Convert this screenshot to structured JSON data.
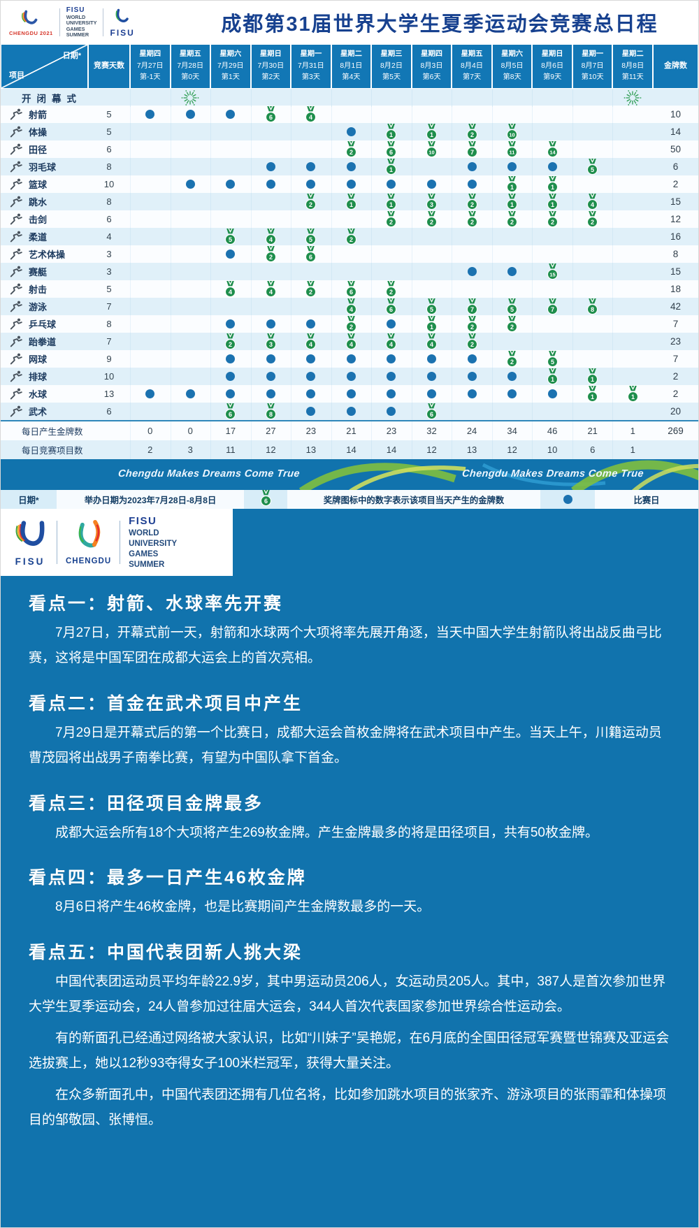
{
  "header": {
    "title": "成都第31届世界大学生夏季运动会竞赛总日程",
    "logo_chengdu_caption": "CHENGDU 2021",
    "logo_fisu_caption": "FISU",
    "fisu_lines": [
      "FISU",
      "WORLD",
      "UNIVERSITY",
      "GAMES",
      "SUMMER"
    ]
  },
  "table": {
    "corner": {
      "top": "日期*",
      "bottom": "项目"
    },
    "days_header": "竞赛天数",
    "gold_header": "金牌数",
    "columns": [
      {
        "weekday": "星期四",
        "date": "7月27日",
        "day": "第-1天"
      },
      {
        "weekday": "星期五",
        "date": "7月28日",
        "day": "第0天"
      },
      {
        "weekday": "星期六",
        "date": "7月29日",
        "day": "第1天"
      },
      {
        "weekday": "星期日",
        "date": "7月30日",
        "day": "第2天"
      },
      {
        "weekday": "星期一",
        "date": "7月31日",
        "day": "第3天"
      },
      {
        "weekday": "星期二",
        "date": "8月1日",
        "day": "第4天"
      },
      {
        "weekday": "星期三",
        "date": "8月2日",
        "day": "第5天"
      },
      {
        "weekday": "星期四",
        "date": "8月3日",
        "day": "第6天"
      },
      {
        "weekday": "星期五",
        "date": "8月4日",
        "day": "第7天"
      },
      {
        "weekday": "星期六",
        "date": "8月5日",
        "day": "第8天"
      },
      {
        "weekday": "星期日",
        "date": "8月6日",
        "day": "第9天"
      },
      {
        "weekday": "星期一",
        "date": "8月7日",
        "day": "第10天"
      },
      {
        "weekday": "星期二",
        "date": "8月8日",
        "day": "第11天"
      }
    ],
    "ceremony": {
      "name": "开闭幕式",
      "fireworks_cols": [
        1,
        12
      ]
    },
    "sports": [
      {
        "name": "射箭",
        "icon": "archery-icon",
        "days": 5,
        "gold": 10,
        "cells": [
          "d",
          "d",
          "d",
          6,
          4,
          null,
          null,
          null,
          null,
          null,
          null,
          null,
          null
        ]
      },
      {
        "name": "体操",
        "icon": "gymnastics-icon",
        "days": 5,
        "gold": 14,
        "cells": [
          null,
          null,
          null,
          null,
          null,
          "d",
          1,
          1,
          2,
          10,
          null,
          null,
          null
        ]
      },
      {
        "name": "田径",
        "icon": "athletics-icon",
        "days": 6,
        "gold": 50,
        "cells": [
          null,
          null,
          null,
          null,
          null,
          2,
          6,
          10,
          7,
          11,
          14,
          null,
          null
        ]
      },
      {
        "name": "羽毛球",
        "icon": "badminton-icon",
        "days": 8,
        "gold": 6,
        "cells": [
          null,
          null,
          null,
          "d",
          "d",
          "d",
          1,
          null,
          "d",
          "d",
          "d",
          5,
          null
        ]
      },
      {
        "name": "篮球",
        "icon": "basketball-icon",
        "days": 10,
        "gold": 2,
        "cells": [
          null,
          "d",
          "d",
          "d",
          "d",
          "d",
          "d",
          "d",
          "d",
          1,
          1,
          null,
          null
        ]
      },
      {
        "name": "跳水",
        "icon": "diving-icon",
        "days": 8,
        "gold": 15,
        "cells": [
          null,
          null,
          null,
          null,
          2,
          1,
          1,
          3,
          2,
          1,
          1,
          4,
          null
        ]
      },
      {
        "name": "击剑",
        "icon": "fencing-icon",
        "days": 6,
        "gold": 12,
        "cells": [
          null,
          null,
          null,
          null,
          null,
          null,
          2,
          2,
          2,
          2,
          2,
          2,
          null
        ]
      },
      {
        "name": "柔道",
        "icon": "judo-icon",
        "days": 4,
        "gold": 16,
        "cells": [
          null,
          null,
          5,
          4,
          5,
          2,
          null,
          null,
          null,
          null,
          null,
          null,
          null
        ]
      },
      {
        "name": "艺术体操",
        "icon": "rhythmic-gymnastics-icon",
        "days": 3,
        "gold": 8,
        "cells": [
          null,
          null,
          "d",
          2,
          6,
          null,
          null,
          null,
          null,
          null,
          null,
          null,
          null
        ]
      },
      {
        "name": "赛艇",
        "icon": "rowing-icon",
        "days": 3,
        "gold": 15,
        "cells": [
          null,
          null,
          null,
          null,
          null,
          null,
          null,
          null,
          "d",
          "d",
          15,
          null,
          null
        ]
      },
      {
        "name": "射击",
        "icon": "shooting-icon",
        "days": 5,
        "gold": 18,
        "cells": [
          null,
          null,
          4,
          4,
          2,
          6,
          2,
          null,
          null,
          null,
          null,
          null,
          null
        ]
      },
      {
        "name": "游泳",
        "icon": "swimming-icon",
        "days": 7,
        "gold": 42,
        "cells": [
          null,
          null,
          null,
          null,
          null,
          4,
          6,
          5,
          7,
          5,
          7,
          8,
          null
        ]
      },
      {
        "name": "乒乓球",
        "icon": "table-tennis-icon",
        "days": 8,
        "gold": 7,
        "cells": [
          null,
          null,
          "d",
          "d",
          "d",
          2,
          "d",
          1,
          2,
          2,
          null,
          null,
          null
        ]
      },
      {
        "name": "跆拳道",
        "icon": "taekwondo-icon",
        "days": 7,
        "gold": 23,
        "cells": [
          null,
          null,
          2,
          3,
          4,
          4,
          4,
          4,
          2,
          null,
          null,
          null,
          null
        ]
      },
      {
        "name": "网球",
        "icon": "tennis-icon",
        "days": 9,
        "gold": 7,
        "cells": [
          null,
          null,
          "d",
          "d",
          "d",
          "d",
          "d",
          "d",
          "d",
          2,
          5,
          null,
          null
        ]
      },
      {
        "name": "排球",
        "icon": "volleyball-icon",
        "days": 10,
        "gold": 2,
        "cells": [
          null,
          null,
          "d",
          "d",
          "d",
          "d",
          "d",
          "d",
          "d",
          "d",
          1,
          1,
          null
        ]
      },
      {
        "name": "水球",
        "icon": "water-polo-icon",
        "days": 13,
        "gold": 2,
        "cells": [
          "d",
          "d",
          "d",
          "d",
          "d",
          "d",
          "d",
          "d",
          "d",
          "d",
          "d",
          1,
          1
        ]
      },
      {
        "name": "武术",
        "icon": "wushu-icon",
        "days": 6,
        "gold": 20,
        "cells": [
          null,
          null,
          6,
          8,
          "d",
          "d",
          "d",
          6,
          null,
          null,
          null,
          null,
          null
        ]
      }
    ],
    "summary": [
      {
        "label": "每日产生金牌数",
        "values": [
          0,
          0,
          17,
          27,
          23,
          21,
          23,
          32,
          24,
          34,
          46,
          21,
          1
        ],
        "total": "269"
      },
      {
        "label": "每日竞赛项目数",
        "values": [
          2,
          3,
          11,
          12,
          13,
          14,
          14,
          12,
          13,
          12,
          10,
          6,
          1
        ],
        "total": ""
      }
    ]
  },
  "slogan": {
    "text": "Chengdu Makes Dreams Come True"
  },
  "legend": {
    "date_label": "日期*",
    "date_note": "举办日期为2023年7月28日-8月8日",
    "medal_sample": 6,
    "medal_note": "奖牌图标中的数字表示该项目当天产生的金牌数",
    "dot_note": "比赛日"
  },
  "logos_block": {
    "fisu_caption": "FISU",
    "chengdu_caption": "CHENGDU",
    "lines": [
      "FISU",
      "WORLD",
      "UNIVERSITY",
      "GAMES",
      "SUMMER"
    ]
  },
  "highlights": [
    {
      "heading": "看点一：射箭、水球率先开赛",
      "paragraphs": [
        "7月27日，开幕式前一天，射箭和水球两个大项将率先展开角逐，当天中国大学生射箭队将出战反曲弓比赛，这将是中国军团在成都大运会上的首次亮相。"
      ]
    },
    {
      "heading": "看点二：首金在武术项目中产生",
      "paragraphs": [
        "7月29日是开幕式后的第一个比赛日，成都大运会首枚金牌将在武术项目中产生。当天上午，川籍运动员曹茂园将出战男子南拳比赛，有望为中国队拿下首金。"
      ]
    },
    {
      "heading": "看点三：田径项目金牌最多",
      "paragraphs": [
        "成都大运会所有18个大项将产生269枚金牌。产生金牌最多的将是田径项目，共有50枚金牌。"
      ]
    },
    {
      "heading": "看点四：最多一日产生46枚金牌",
      "paragraphs": [
        "8月6日将产生46枚金牌，也是比赛期间产生金牌数最多的一天。"
      ]
    },
    {
      "heading": "看点五：中国代表团新人挑大梁",
      "paragraphs": [
        "中国代表团运动员平均年龄22.9岁，其中男运动员206人，女运动员205人。其中，387人是首次参加世界大学生夏季运动会，24人曾参加过往届大运会，344人首次代表国家参加世界综合性运动会。",
        "有的新面孔已经通过网络被大家认识，比如“川妹子”吴艳妮，在6月底的全国田径冠军赛暨世锦赛及亚运会选拔赛上，她以12秒93夺得女子100米栏冠军，获得大量关注。",
        "在众多新面孔中，中国代表团还拥有几位名将，比如参加跳水项目的张家齐、游泳项目的张雨霏和体操项目的邹敬园、张博恒。"
      ]
    }
  ],
  "colors": {
    "table_blue": "#1277b5",
    "content_blue": "#1173ad",
    "medal_green": "#1e8e4c",
    "dot_blue": "#1b72b0",
    "title_navy": "#17418f"
  }
}
